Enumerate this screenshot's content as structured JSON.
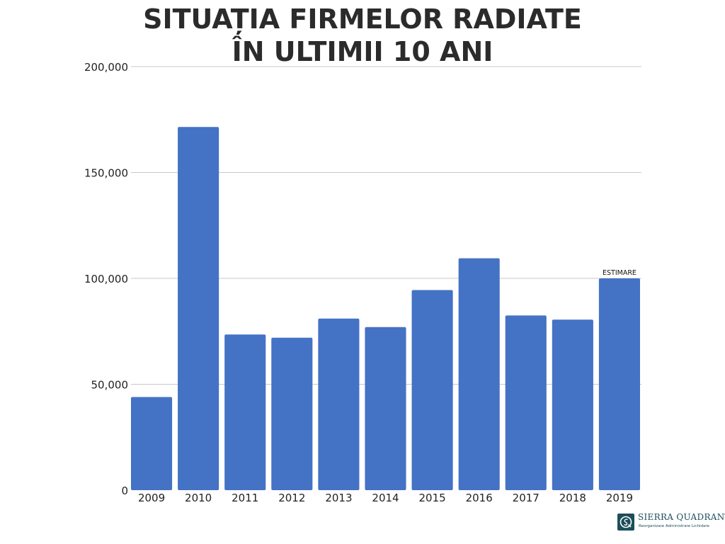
{
  "title": {
    "line1": "SITUAȚIA FIRMELOR RADIATE",
    "line2": "ÎN ULTIMII 10 ANI"
  },
  "chart_data": {
    "type": "bar",
    "title": "SITUAȚIA FIRMELOR RADIATE ÎN ULTIMII 10 ANI",
    "categories": [
      "2009",
      "2010",
      "2011",
      "2012",
      "2013",
      "2014",
      "2015",
      "2016",
      "2017",
      "2018",
      "2019"
    ],
    "values": [
      44000,
      171500,
      73500,
      72000,
      81000,
      77000,
      94500,
      109500,
      82500,
      80500,
      100000
    ],
    "annotations": [
      {
        "category": "2019",
        "text": "ESTIMARE"
      }
    ],
    "ylim": [
      0,
      200000
    ],
    "yticks": [
      0,
      50000,
      100000,
      150000,
      200000
    ],
    "ytick_labels": [
      "0",
      "50,000",
      "100,000",
      "150,000",
      "200,000"
    ],
    "grid": true,
    "legend": "none",
    "bar_color": "#4472c4",
    "grid_color": "#c8c8c8"
  },
  "logo": {
    "name": "SIERRA QUADRANT",
    "tagline": "Reorganizare Administrare Lichidare"
  }
}
